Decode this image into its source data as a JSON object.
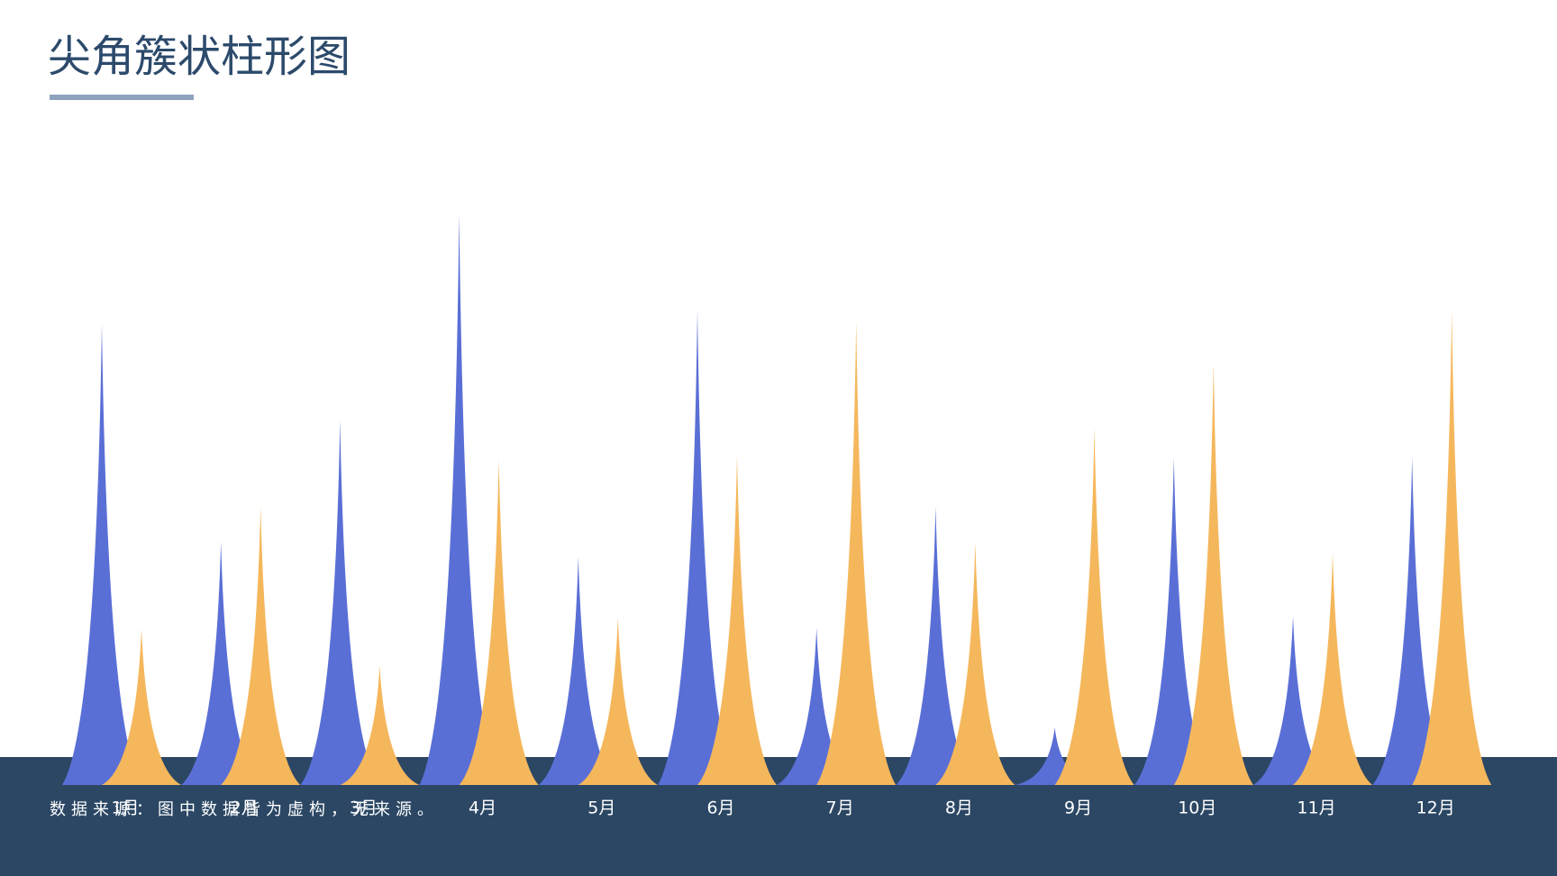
{
  "chart_data": {
    "type": "bar",
    "title": "尖角簇状柱形图",
    "note": "数据来源：图中数据皆为虚构，无来源。",
    "categories": [
      "1月",
      "2月",
      "3月",
      "4月",
      "5月",
      "6月",
      "7月",
      "8月",
      "9月",
      "10月",
      "11月",
      "12月"
    ],
    "series": [
      {
        "color": "#5a6fd6",
        "values": [
          465,
          245,
          367,
          575,
          230,
          478,
          158,
          280,
          58,
          330,
          170,
          330
        ]
      },
      {
        "color": "#f5b75c",
        "values": [
          157,
          280,
          120,
          328,
          168,
          332,
          467,
          244,
          360,
          425,
          233,
          478
        ]
      }
    ],
    "ylim": [
      0,
      600
    ]
  }
}
